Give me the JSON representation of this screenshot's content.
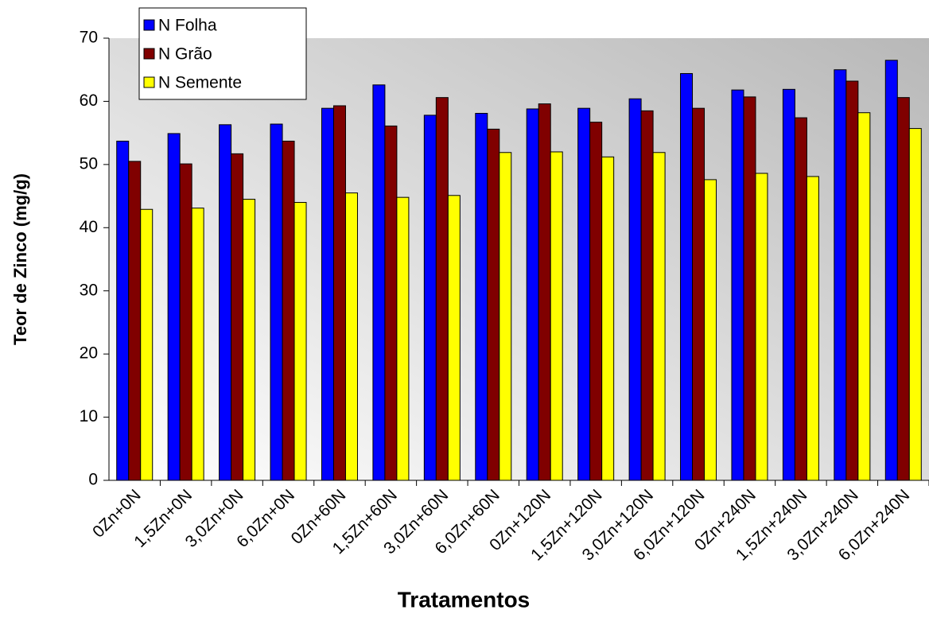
{
  "chart_data": {
    "type": "bar",
    "x_label": "Tratamentos",
    "y_label": "Teor de Zinco (mg/g)",
    "categories": [
      "0Zn+0N",
      "1,5Zn+0N",
      "3,0Zn+0N",
      "6,0Zn+0N",
      "0Zn+60N",
      "1,5Zn+60N",
      "3,0Zn+60N",
      "6,0Zn+60N",
      "0Zn+120N",
      "1,5Zn+120N",
      "3,0Zn+120N",
      "6,0Zn+120N",
      "0Zn+240N",
      "1,5Zn+240N",
      "3,0Zn+240N",
      "6,0Zn+240N"
    ],
    "series": [
      {
        "name": "N Folha",
        "color": "#0000ff",
        "values": [
          53.7,
          54.9,
          56.3,
          56.4,
          58.9,
          62.6,
          57.8,
          58.1,
          58.8,
          58.9,
          60.4,
          64.4,
          61.8,
          61.9,
          65.0,
          66.5
        ]
      },
      {
        "name": "N Grão",
        "color": "#800000",
        "values": [
          50.5,
          50.1,
          51.7,
          53.7,
          59.3,
          56.1,
          60.6,
          55.6,
          59.6,
          56.7,
          58.5,
          58.9,
          60.7,
          57.4,
          63.2,
          60.6
        ]
      },
      {
        "name": "N Semente",
        "color": "#ffff00",
        "values": [
          42.9,
          43.1,
          44.5,
          44.0,
          45.5,
          44.8,
          45.1,
          51.9,
          52.0,
          51.2,
          51.9,
          47.6,
          48.6,
          48.1,
          58.2,
          55.7
        ]
      }
    ],
    "ylim": [
      0,
      70
    ],
    "yticks": [
      0,
      10,
      20,
      30,
      40,
      50,
      60,
      70
    ],
    "legend": "top-left"
  }
}
